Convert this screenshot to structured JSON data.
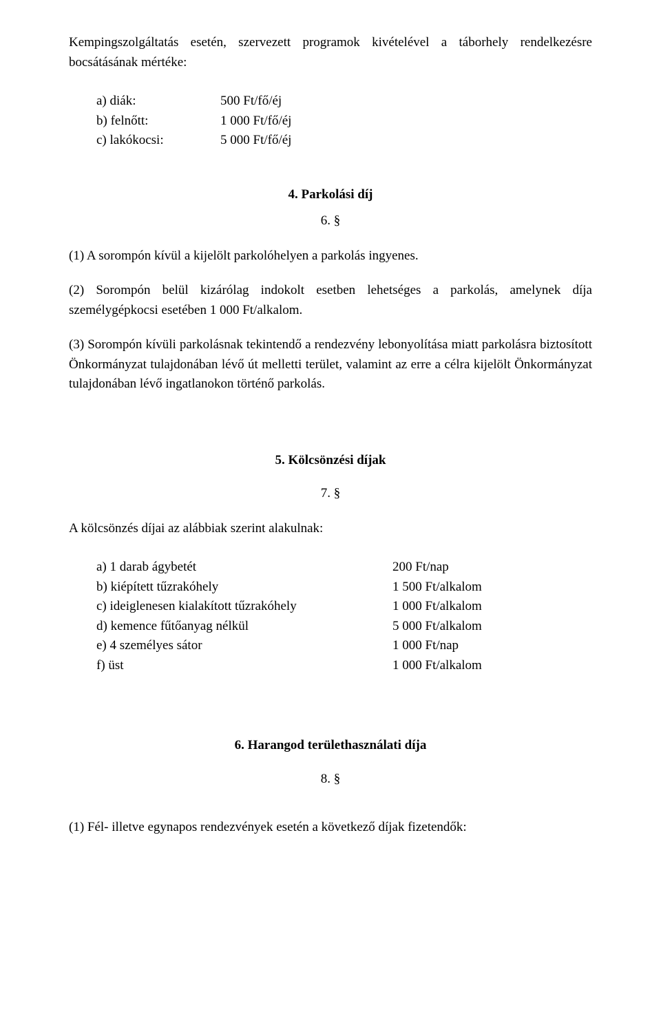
{
  "intro": "Kempingszolgáltatás esetén, szervezett programok kivételével a táborhely rendelkezésre bocsátásának mértéke:",
  "tariff_a_label": "a) diák:",
  "tariff_a_value": "500 Ft/fő/éj",
  "tariff_b_label": "b) felnőtt:",
  "tariff_b_value": "1 000 Ft/fő/éj",
  "tariff_c_label": "c) lakókocsi:",
  "tariff_c_value": "5 000 Ft/fő/éj",
  "section4_title": "4. Parkolási díj",
  "section4_num": "6. §",
  "section4_p1": "(1) A sorompón kívül a kijelölt parkolóhelyen a parkolás ingyenes.",
  "section4_p2": "(2) Sorompón belül kizárólag indokolt esetben lehetséges a parkolás, amelynek díja személygépkocsi esetében 1 000 Ft/alkalom.",
  "section4_p3": "(3) Sorompón kívüli parkolásnak tekintendő a rendezvény lebonyolítása miatt parkolásra biztosított Önkormányzat tulajdonában lévő út melletti terület, valamint az erre a célra kijelölt Önkormányzat tulajdonában lévő ingatlanokon történő parkolás.",
  "section5_title": "5. Kölcsönzési díjak",
  "section5_num": "7. §",
  "section5_lead": "A kölcsönzés díjai az alábbiak szerint alakulnak:",
  "rent_a_label": "a) 1 darab ágybetét",
  "rent_a_value": "200 Ft/nap",
  "rent_b_label": "b) kiépített tűzrakóhely",
  "rent_b_value": "1 500 Ft/alkalom",
  "rent_c_label": "c) ideiglenesen kialakított tűzrakóhely",
  "rent_c_value": "1 000 Ft/alkalom",
  "rent_d_label": "d) kemence fűtőanyag nélkül",
  "rent_d_value": "5 000 Ft/alkalom",
  "rent_e_label": "e) 4 személyes sátor",
  "rent_e_value": "1 000 Ft/nap",
  "rent_f_label": "f) üst",
  "rent_f_value": "1 000 Ft/alkalom",
  "section6_title": "6. Harangod területhasználati díja",
  "section6_num": "8. §",
  "section6_p1": "(1) Fél- illetve egynapos rendezvények esetén a következő díjak fizetendők:"
}
